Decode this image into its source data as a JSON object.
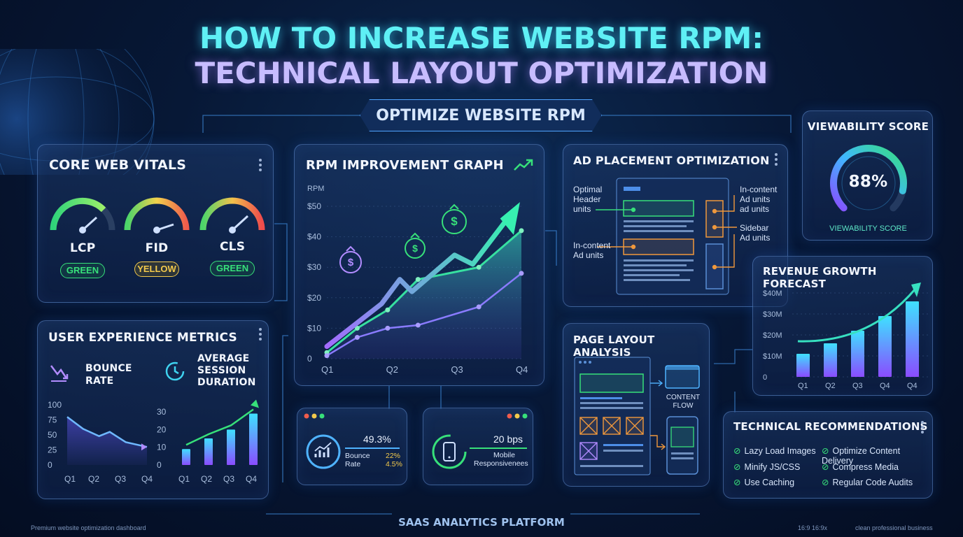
{
  "header": {
    "title_line1": "HOW TO INCREASE WEBSITE RPM:",
    "title_line2": "TECHNICAL LAYOUT OPTIMIZATION",
    "badge": "OPTIMIZE WEBSITE RPM"
  },
  "core_web_vitals": {
    "title": "CORE WEB VITALS",
    "metrics": [
      {
        "label": "LCP",
        "status": "GREEN",
        "color": "#37e07a"
      },
      {
        "label": "FID",
        "status": "YELLOW",
        "color": "#f2c94c"
      },
      {
        "label": "CLS",
        "status": "GREEN",
        "color": "#37e07a"
      }
    ]
  },
  "user_experience": {
    "title": "USER EXPERIENCE METRICS",
    "bounce_label_1": "BOUNCE",
    "bounce_label_2": "RATE",
    "session_label_1": "AVERAGE",
    "session_label_2": "SESSION",
    "session_label_3": "DURATION",
    "bounce_y_ticks": [
      "100",
      "75",
      "50",
      "25",
      "0"
    ],
    "session_y_ticks": [
      "30",
      "20",
      "10",
      "0"
    ],
    "x_ticks": [
      "Q1",
      "Q2",
      "Q3",
      "Q4"
    ]
  },
  "rpm_graph": {
    "title": "RPM IMPROVEMENT GRAPH",
    "ylabel": "RPM",
    "y_ticks": [
      "$50",
      "$40",
      "$30",
      "$20",
      "$10",
      "0"
    ],
    "x_ticks": [
      "Q1",
      "Q2",
      "Q3",
      "Q4"
    ]
  },
  "ad_placement": {
    "title": "AD PLACEMENT OPTIMIZATION",
    "label_header_1": "Optimal",
    "label_header_2": "Header",
    "label_header_3": "units",
    "label_incontent_left_1": "In-content",
    "label_incontent_left_2": "Ad units",
    "label_incontent_right_1": "In-content",
    "label_incontent_right_2": "Ad units",
    "label_incontent_right_3": "ad units",
    "label_sidebar_1": "Sidebar",
    "label_sidebar_2": "Ad units"
  },
  "viewability": {
    "title": "VIEWABILITY SCORE",
    "value": "88%",
    "value_fraction": 0.88,
    "caption": "VIEWABILITY SCORE"
  },
  "revenue_forecast": {
    "title": "REVENUE GROWTH FORECAST",
    "y_ticks": [
      "$40M",
      "$30M",
      "$20M",
      "$10M",
      "0"
    ],
    "x_ticks": [
      "Q1",
      "Q2",
      "Q3",
      "Q4",
      "Q4"
    ]
  },
  "page_layout": {
    "title": "PAGE LAYOUT ANALYSIS",
    "content_flow_1": "CONTENT",
    "content_flow_2": "FLOW"
  },
  "mini_bounce": {
    "value": "49.3%",
    "label_1": "Bounce",
    "label_2": "Rate",
    "pct_1": "22%",
    "pct_2": "4.5%"
  },
  "mini_mobile": {
    "value": "20 bps",
    "label_1": "Mobile",
    "label_2": "Responsivenees"
  },
  "tech_recs": {
    "title": "TECHNICAL RECOMMENDATIONS",
    "left": [
      "Lazy Load Images",
      "Minify JS/CSS",
      "Use Caching"
    ],
    "right": [
      "Optimize Content Delivery",
      "Compress Media",
      "Regular Code Audits"
    ]
  },
  "footer": {
    "platform": "SAAS ANALYTICS PLATFORM",
    "left_note": "Premium website optimization dashboard",
    "right_note_1": "16:9  16:9x",
    "right_note_2": "clean professional business"
  },
  "chart_data": [
    {
      "type": "line",
      "title": "RPM IMPROVEMENT GRAPH",
      "ylabel": "RPM",
      "categories": [
        "Q1",
        "Q2",
        "Q3",
        "Q4"
      ],
      "ylim": [
        0,
        50
      ],
      "series": [
        {
          "values": [
            2,
            10,
            16,
            26,
            30,
            42
          ]
        },
        {
          "values": [
            1,
            7,
            10,
            11,
            17,
            28
          ]
        }
      ],
      "x": [
        0,
        0.5,
        1,
        1.5,
        2.5,
        3.2
      ]
    },
    {
      "type": "area",
      "title": "BOUNCE RATE",
      "categories": [
        "Q1",
        "Q2",
        "Q3",
        "Q4"
      ],
      "ylim": [
        0,
        100
      ],
      "x": [
        0,
        0.6,
        1.2,
        1.6,
        2.2,
        3.0
      ],
      "values": [
        80,
        60,
        48,
        55,
        38,
        30
      ]
    },
    {
      "type": "bar",
      "title": "AVERAGE SESSION DURATION",
      "categories": [
        "Q1",
        "Q2",
        "Q3",
        "Q4"
      ],
      "ylim": [
        0,
        30
      ],
      "values": [
        9,
        15,
        20,
        29
      ]
    },
    {
      "type": "bar",
      "title": "REVENUE GROWTH FORECAST",
      "categories": [
        "Q1",
        "Q2",
        "Q3",
        "Q4",
        "Q4"
      ],
      "ylim": [
        0,
        40
      ],
      "values": [
        11,
        16,
        22,
        29,
        36
      ]
    }
  ]
}
